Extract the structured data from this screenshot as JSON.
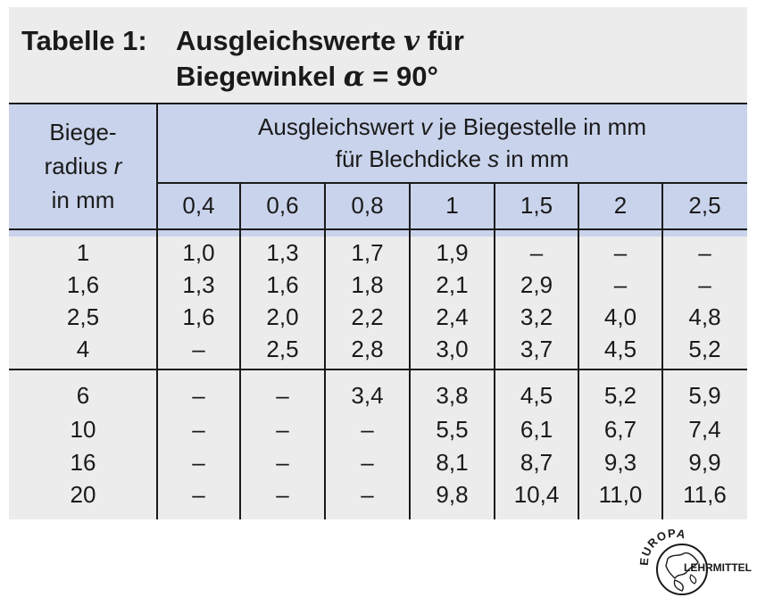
{
  "title": {
    "label": "Tabelle 1:",
    "line1_text": "Ausgleichswerte ",
    "line1_symbol": "v",
    "line1_suffix": " für",
    "line2_text": "Biegewinkel ",
    "line2_symbol": "α",
    "line2_suffix": " = 90°"
  },
  "header": {
    "radius_line1": "Biege-",
    "radius_line2_text": "radius ",
    "radius_line2_symbol": "r",
    "radius_line3": "in mm",
    "value_line1_pre": "Ausgleichswert ",
    "value_line1_symbol": "v",
    "value_line1_post": " je Biegestelle in mm",
    "value_line2_pre": "für Blechdicke ",
    "value_line2_symbol": "s",
    "value_line2_post": " in mm",
    "thickness": [
      "0,4",
      "0,6",
      "0,8",
      "1",
      "1,5",
      "2",
      "2,5"
    ]
  },
  "groups": [
    {
      "rows": [
        {
          "r": "1",
          "v": [
            "1,0",
            "1,3",
            "1,7",
            "1,9",
            "–",
            "–",
            "–"
          ]
        },
        {
          "r": "1,6",
          "v": [
            "1,3",
            "1,6",
            "1,8",
            "2,1",
            "2,9",
            "–",
            "–"
          ]
        },
        {
          "r": "2,5",
          "v": [
            "1,6",
            "2,0",
            "2,2",
            "2,4",
            "3,2",
            "4,0",
            "4,8"
          ]
        },
        {
          "r": "4",
          "v": [
            "–",
            "2,5",
            "2,8",
            "3,0",
            "3,7",
            "4,5",
            "5,2"
          ]
        }
      ]
    },
    {
      "rows": [
        {
          "r": "6",
          "v": [
            "–",
            "–",
            "3,4",
            "3,8",
            "4,5",
            "5,2",
            "5,9"
          ]
        },
        {
          "r": "10",
          "v": [
            "–",
            "–",
            "–",
            "5,5",
            "6,1",
            "6,7",
            "7,4"
          ]
        },
        {
          "r": "16",
          "v": [
            "–",
            "–",
            "–",
            "8,1",
            "8,7",
            "9,3",
            "9,9"
          ]
        },
        {
          "r": "20",
          "v": [
            "–",
            "–",
            "–",
            "9,8",
            "10,4",
            "11,0",
            "11,6"
          ]
        }
      ]
    }
  ],
  "logo": {
    "top_text": "EUROPA",
    "side_text": "LEHRMITTEL"
  }
}
